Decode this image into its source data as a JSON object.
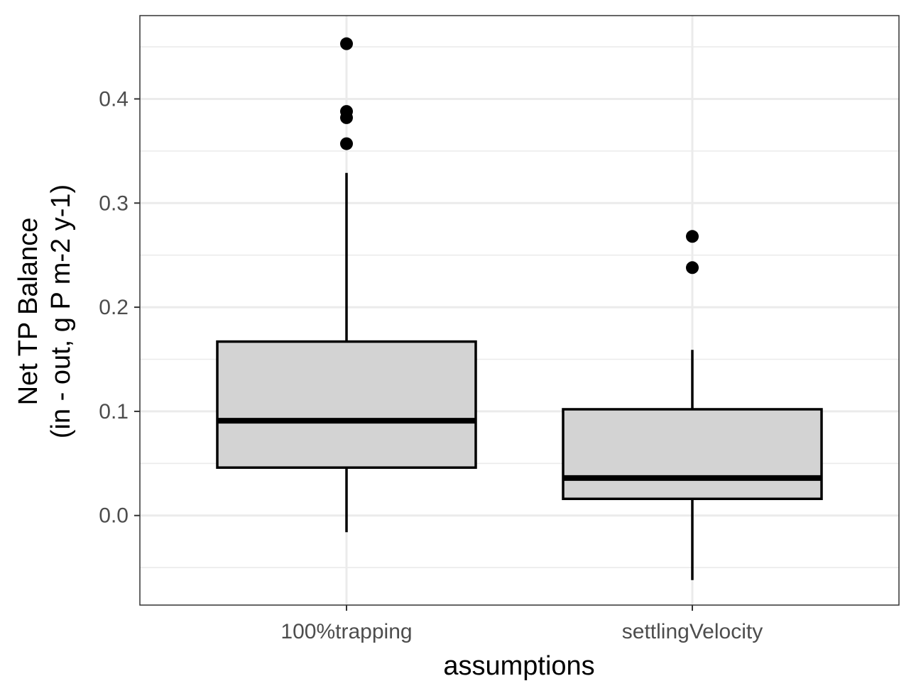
{
  "chart_data": {
    "type": "boxplot",
    "xlabel": "assumptions",
    "ylabel_lines": [
      "Net TP Balance",
      "(in - out, g P m-2 y-1)"
    ],
    "categories": [
      "100%trapping",
      "settlingVelocity"
    ],
    "boxes": [
      {
        "category": "100%trapping",
        "whisker_low": -0.016,
        "q1": 0.046,
        "median": 0.091,
        "q3": 0.167,
        "whisker_high": 0.329,
        "outliers": [
          0.453,
          0.388,
          0.382,
          0.357
        ]
      },
      {
        "category": "settlingVelocity",
        "whisker_low": -0.062,
        "q1": 0.016,
        "median": 0.036,
        "q3": 0.102,
        "whisker_high": 0.159,
        "outliers": [
          0.268,
          0.238
        ]
      }
    ],
    "ylim": [
      -0.086,
      0.48
    ],
    "yticks": [
      0.0,
      0.1,
      0.2,
      0.3,
      0.4
    ],
    "ytick_labels": [
      "0.0",
      "0.1",
      "0.2",
      "0.3",
      "0.4"
    ],
    "minor_yticks": [
      -0.05,
      0.05,
      0.15,
      0.25,
      0.35,
      0.45
    ],
    "grid": true,
    "legend": "none",
    "colors": {
      "box_fill": "#d3d3d3",
      "box_stroke": "#000000",
      "grid": "#ebebeb",
      "panel_border": "#333333",
      "tick_text": "#4d4d4d"
    }
  }
}
